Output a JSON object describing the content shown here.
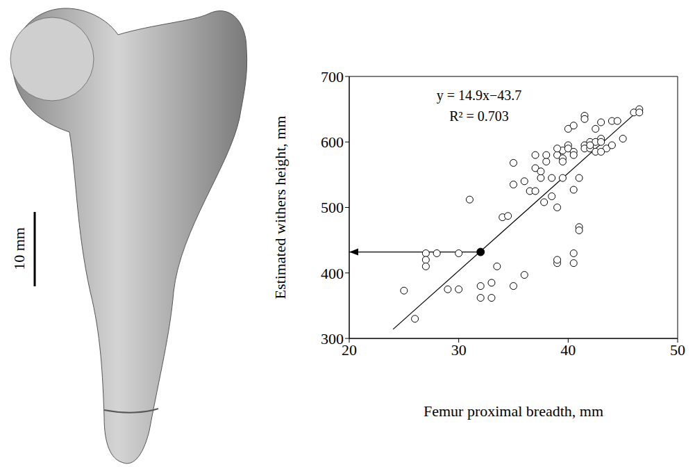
{
  "chart_data": {
    "type": "scatter",
    "x_label": "Femur proximal breadth, mm",
    "y_label": "Estimated withers height, mm",
    "x": [
      25,
      26,
      27,
      27,
      27,
      28,
      29,
      30,
      30,
      31,
      32,
      32,
      33,
      33,
      33.5,
      34,
      34.5,
      35,
      35,
      35,
      36,
      36,
      36.5,
      37,
      37,
      37,
      37.5,
      37.5,
      38,
      38,
      37.8,
      38.5,
      38.5,
      39,
      39,
      39,
      39,
      39.5,
      39.5,
      39.5,
      39.5,
      40,
      40,
      40,
      40.5,
      40.5,
      40.5,
      40.5,
      40.5,
      40.5,
      41,
      41,
      41,
      41.5,
      41.5,
      41.5,
      41.5,
      42,
      42,
      42.5,
      42.5,
      42.5,
      43,
      43,
      43,
      43.5,
      44,
      44,
      44.5,
      45,
      46,
      46.5,
      46.5,
      39,
      42,
      43
    ],
    "values": [
      373,
      330,
      430,
      420,
      410,
      430,
      375,
      375,
      430,
      512,
      380,
      362,
      362,
      385,
      410,
      485,
      487,
      535,
      568,
      380,
      397,
      540,
      525,
      580,
      560,
      525,
      545,
      555,
      570,
      580,
      508,
      545,
      517,
      580,
      500,
      415,
      420,
      575,
      570,
      587,
      545,
      620,
      595,
      590,
      585,
      580,
      527,
      430,
      415,
      625,
      545,
      470,
      465,
      640,
      635,
      595,
      590,
      600,
      590,
      620,
      600,
      585,
      630,
      605,
      600,
      590,
      632,
      595,
      632,
      605,
      645,
      650,
      645,
      590,
      595,
      585
    ],
    "color": "#000000",
    "marker": "open circle",
    "xlim": [
      20,
      50
    ],
    "xticks": [
      20,
      30,
      40,
      50
    ],
    "ylim": [
      300,
      700
    ],
    "yticks": [
      300,
      400,
      500,
      600,
      700
    ],
    "grid": false,
    "annotations": [
      "y = 14.9x−43.7",
      "R² = 0.703"
    ],
    "fit_line": {
      "x": [
        24,
        46.5
      ],
      "values": [
        313.9,
        649.2
      ]
    },
    "highlight": {
      "x": [
        32
      ],
      "values": [
        432
      ],
      "marker": "filled circle"
    },
    "arrow": {
      "x": [
        32,
        20
      ],
      "values": [
        432,
        432
      ]
    }
  },
  "photo": {
    "scale_bar": "10 mm"
  }
}
